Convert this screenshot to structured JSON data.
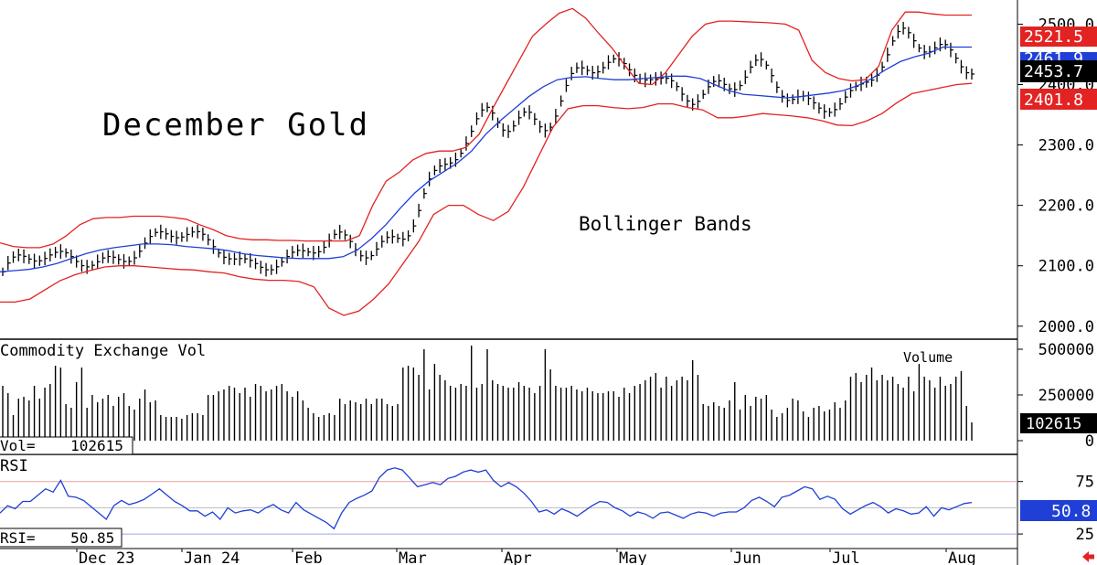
{
  "chart_data": [
    {
      "type": "line",
      "panel": "price",
      "title": "December Gold",
      "annotation": "Bollinger Bands",
      "ylim": [
        1980,
        2540
      ],
      "y_ticks": [
        "2500.0",
        "2400.0",
        "2300.0",
        "2200.0",
        "2100.0",
        "2000.0"
      ],
      "y_tick_values": [
        2500,
        2400,
        2300,
        2200,
        2100,
        2000
      ],
      "price_labels": [
        {
          "text": "2521.5",
          "color": "#e32222"
        },
        {
          "text": "2461.9",
          "color": "#1f3fd6"
        },
        {
          "text": "2453.7",
          "color": "#000000"
        },
        {
          "text": "2401.8",
          "color": "#e32222"
        }
      ],
      "series": [
        {
          "name": "upper band",
          "color": "#e32222",
          "values": [
            2138,
            2132,
            2130,
            2130,
            2136,
            2150,
            2168,
            2178,
            2180,
            2180,
            2182,
            2182,
            2182,
            2180,
            2177,
            2168,
            2160,
            2150,
            2145,
            2143,
            2143,
            2142,
            2142,
            2141,
            2141,
            2141,
            2141,
            2150,
            2200,
            2240,
            2255,
            2275,
            2286,
            2290,
            2290,
            2296,
            2318,
            2360,
            2400,
            2440,
            2480,
            2500,
            2518,
            2526,
            2510,
            2484,
            2460,
            2430,
            2402,
            2400,
            2420,
            2450,
            2480,
            2500,
            2505,
            2505,
            2504,
            2503,
            2502,
            2500,
            2490,
            2440,
            2420,
            2410,
            2406,
            2408,
            2430,
            2490,
            2520,
            2520,
            2517,
            2515,
            2515,
            2515
          ]
        },
        {
          "name": "20-day average",
          "color": "#1f3fd6",
          "values": [
            2090,
            2092,
            2094,
            2098,
            2104,
            2112,
            2120,
            2126,
            2130,
            2133,
            2136,
            2136,
            2135,
            2132,
            2130,
            2128,
            2125,
            2120,
            2117,
            2115,
            2113,
            2112,
            2112,
            2112,
            2115,
            2126,
            2145,
            2168,
            2195,
            2220,
            2240,
            2255,
            2270,
            2290,
            2318,
            2340,
            2360,
            2380,
            2396,
            2408,
            2412,
            2413,
            2410,
            2408,
            2408,
            2410,
            2412,
            2414,
            2414,
            2410,
            2400,
            2390,
            2384,
            2382,
            2380,
            2378,
            2380,
            2383,
            2386,
            2390,
            2398,
            2410,
            2425,
            2438,
            2446,
            2452,
            2462,
            2462,
            2462
          ]
        },
        {
          "name": "lower band",
          "color": "#e32222",
          "values": [
            2040,
            2040,
            2045,
            2060,
            2075,
            2085,
            2092,
            2098,
            2100,
            2100,
            2098,
            2096,
            2094,
            2093,
            2090,
            2088,
            2082,
            2078,
            2076,
            2076,
            2074,
            2065,
            2030,
            2018,
            2025,
            2045,
            2070,
            2105,
            2140,
            2185,
            2200,
            2200,
            2185,
            2175,
            2190,
            2230,
            2280,
            2330,
            2360,
            2365,
            2365,
            2362,
            2360,
            2362,
            2368,
            2368,
            2362,
            2358,
            2345,
            2345,
            2348,
            2352,
            2350,
            2348,
            2345,
            2340,
            2333,
            2332,
            2340,
            2352,
            2370,
            2385,
            2390,
            2395,
            2400,
            2402
          ]
        }
      ]
    },
    {
      "type": "bar",
      "panel": "volume",
      "title": "Commodity Exchange Vol",
      "label": "Volume",
      "ylim": [
        0,
        550000
      ],
      "y_ticks": [
        "500000",
        "250000",
        "0"
      ],
      "y_tick_values": [
        500000,
        250000,
        0
      ],
      "readout": "Vol=    102615",
      "last_value_label": "102615",
      "values": [
        300000,
        260000,
        140000,
        230000,
        240000,
        220000,
        300000,
        230000,
        290000,
        310000,
        410000,
        400000,
        200000,
        180000,
        320000,
        400000,
        180000,
        250000,
        210000,
        230000,
        250000,
        190000,
        240000,
        260000,
        190000,
        170000,
        230000,
        280000,
        210000,
        220000,
        140000,
        130000,
        130000,
        130000,
        120000,
        140000,
        150000,
        150000,
        140000,
        250000,
        250000,
        270000,
        280000,
        300000,
        290000,
        260000,
        290000,
        240000,
        310000,
        300000,
        270000,
        280000,
        300000,
        310000,
        270000,
        240000,
        270000,
        220000,
        180000,
        150000,
        130000,
        140000,
        150000,
        140000,
        230000,
        200000,
        220000,
        210000,
        200000,
        230000,
        200000,
        230000,
        230000,
        200000,
        190000,
        200000,
        400000,
        410000,
        400000,
        360000,
        500000,
        280000,
        420000,
        360000,
        330000,
        300000,
        290000,
        310000,
        300000,
        520000,
        290000,
        310000,
        500000,
        330000,
        310000,
        300000,
        290000,
        290000,
        320000,
        300000,
        290000,
        260000,
        300000,
        500000,
        390000,
        300000,
        290000,
        290000,
        300000,
        280000,
        270000,
        290000,
        270000,
        260000,
        260000,
        270000,
        270000,
        240000,
        290000,
        260000,
        300000,
        310000,
        330000,
        350000,
        370000,
        290000,
        350000,
        300000,
        330000,
        350000,
        330000,
        440000,
        360000,
        200000,
        190000,
        210000,
        190000,
        180000,
        220000,
        320000,
        170000,
        250000,
        190000,
        240000,
        230000,
        250000,
        170000,
        130000,
        150000,
        180000,
        230000,
        220000,
        160000,
        130000,
        180000,
        190000,
        160000,
        170000,
        210000,
        180000,
        220000,
        350000,
        370000,
        320000,
        360000,
        400000,
        330000,
        360000,
        330000,
        350000,
        310000,
        290000,
        350000,
        270000,
        420000,
        350000,
        330000,
        290000,
        350000,
        300000,
        310000,
        350000,
        380000,
        190000,
        100000
      ]
    },
    {
      "type": "line",
      "panel": "rsi",
      "title": "RSI",
      "ylim": [
        12,
        100
      ],
      "y_ticks": [
        "75",
        "25"
      ],
      "y_tick_values": [
        75,
        25
      ],
      "reference_lines": [
        75,
        50,
        25
      ],
      "readout": "RSI=    50.85",
      "last_value_label": "50.8",
      "series": [
        {
          "name": "RSI",
          "color": "#1f3fd6",
          "values": [
            45,
            52,
            49,
            56,
            56,
            62,
            68,
            65,
            76,
            61,
            60,
            57,
            51,
            45,
            39,
            52,
            57,
            53,
            55,
            58,
            63,
            68,
            62,
            56,
            52,
            47,
            47,
            42,
            46,
            39,
            50,
            45,
            47,
            48,
            45,
            50,
            53,
            48,
            45,
            55,
            48,
            44,
            40,
            36,
            30,
            45,
            55,
            59,
            62,
            66,
            79,
            86,
            88,
            86,
            78,
            70,
            72,
            74,
            72,
            78,
            80,
            84,
            86,
            84,
            86,
            76,
            70,
            74,
            70,
            64,
            56,
            46,
            48,
            44,
            49,
            46,
            42,
            47,
            52,
            56,
            55,
            50,
            47,
            42,
            46,
            44,
            40,
            45,
            46,
            43,
            40,
            44,
            46,
            45,
            42,
            45,
            46,
            46,
            50,
            57,
            60,
            56,
            51,
            60,
            62,
            66,
            70,
            68,
            58,
            61,
            58,
            49,
            44,
            48,
            52,
            55,
            51,
            45,
            49,
            47,
            44,
            45,
            51,
            42,
            50,
            48,
            51,
            54,
            55
          ]
        }
      ]
    }
  ],
  "x_axis": {
    "labels": [
      "Dec 23",
      "Jan 24",
      "Feb",
      "Mar",
      "Apr",
      "May",
      "Jun",
      "Jul",
      "Aug"
    ]
  }
}
